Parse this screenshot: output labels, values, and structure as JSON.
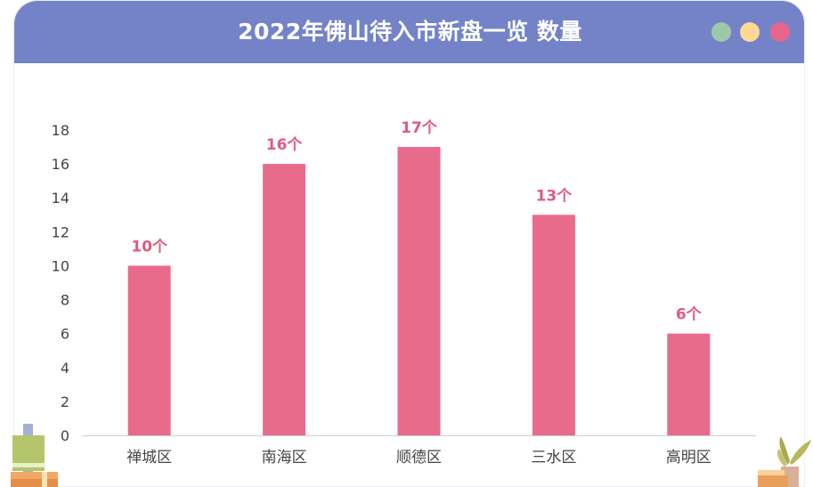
{
  "window": {
    "title": "2022年佛山待入市新盘一览 数量",
    "dots": [
      {
        "name": "dot-green",
        "color": "#9ccaa8"
      },
      {
        "name": "dot-yellow",
        "color": "#fcd893"
      },
      {
        "name": "dot-red",
        "color": "#e8658a"
      }
    ]
  },
  "chart_data": {
    "type": "bar",
    "categories": [
      "禅城区",
      "南海区",
      "顺德区",
      "三水区",
      "高明区"
    ],
    "values": [
      10,
      16,
      17,
      13,
      6
    ],
    "data_labels": [
      "10个",
      "16个",
      "17个",
      "13个",
      "6个"
    ],
    "ylim": [
      0,
      18
    ],
    "yticks": [
      0,
      2,
      4,
      6,
      8,
      10,
      12,
      14,
      16,
      18
    ],
    "grid": false,
    "bar_color": "#e96b8c",
    "label_color": "#e05a82"
  }
}
